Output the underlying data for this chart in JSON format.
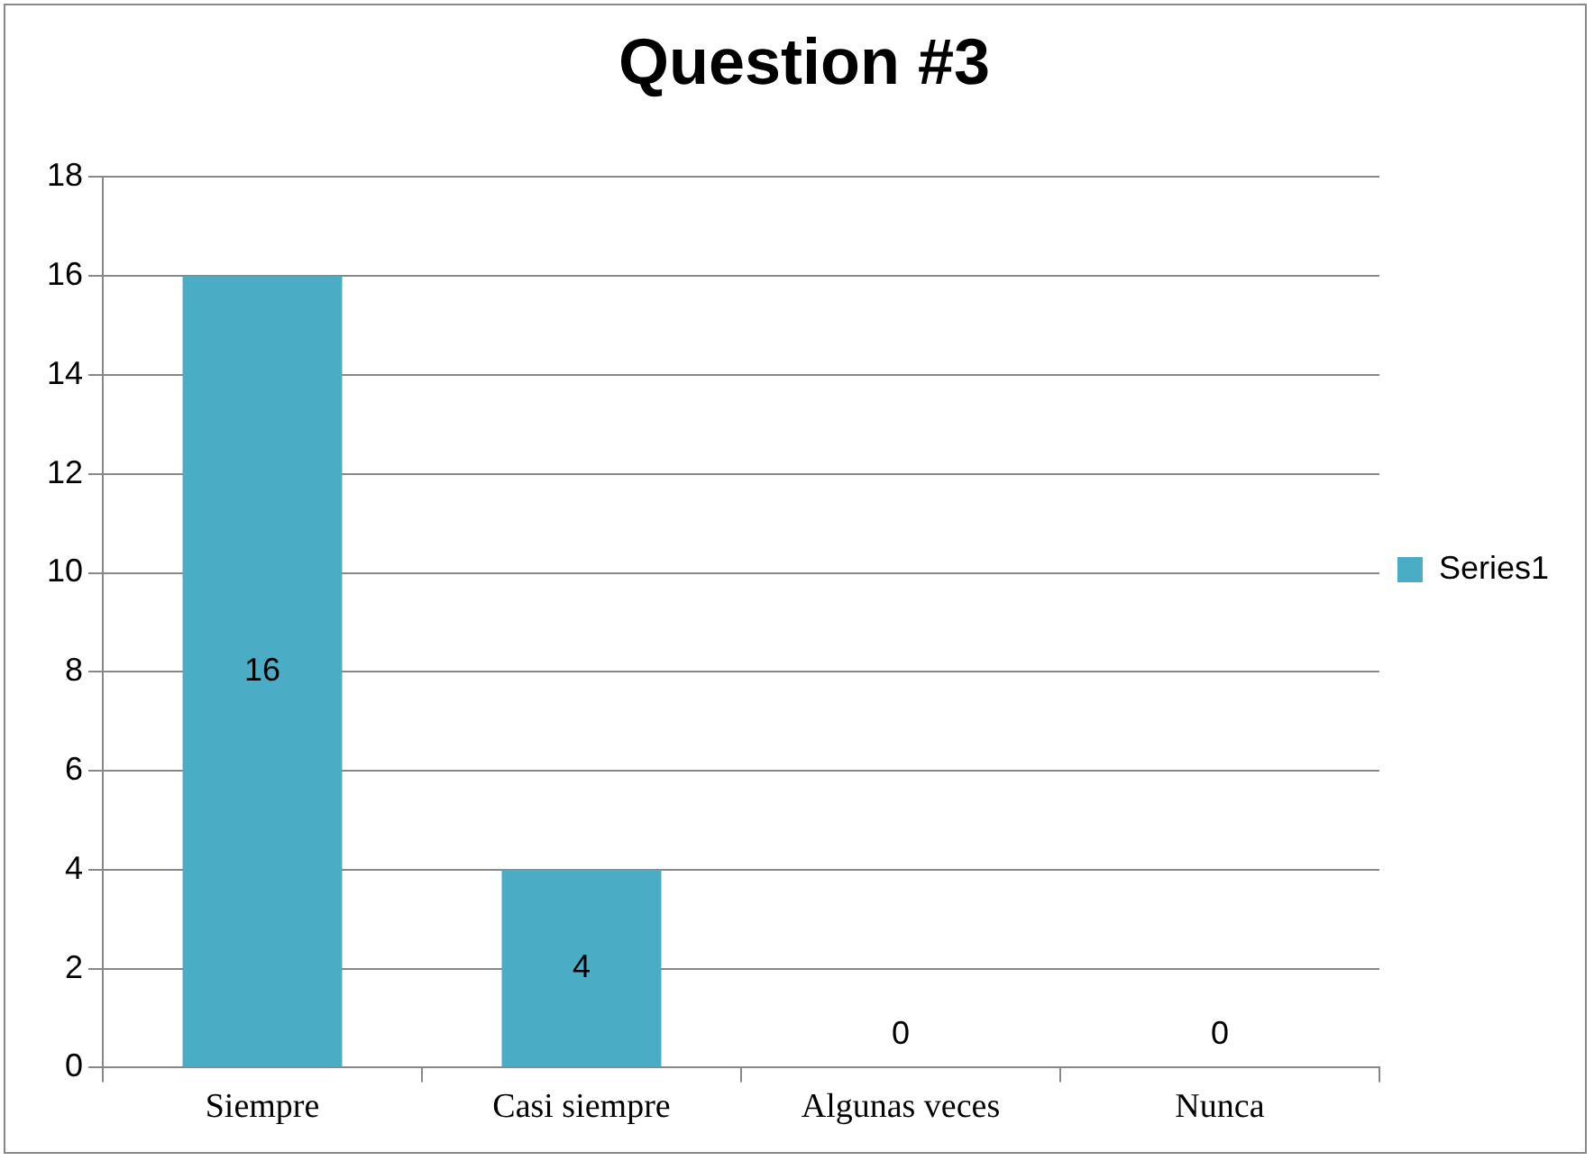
{
  "chart_data": {
    "type": "bar",
    "title": "Question #3",
    "categories": [
      "Siempre",
      "Casi siempre",
      "Algunas veces",
      "Nunca"
    ],
    "series": [
      {
        "name": "Series1",
        "color": "#4bacc6",
        "values": [
          16,
          4,
          0,
          0
        ]
      }
    ],
    "ylim": [
      0,
      18
    ],
    "yticks": [
      0,
      2,
      4,
      6,
      8,
      10,
      12,
      14,
      16,
      18
    ],
    "grid": "y",
    "legend": "right",
    "data_labels": true
  }
}
